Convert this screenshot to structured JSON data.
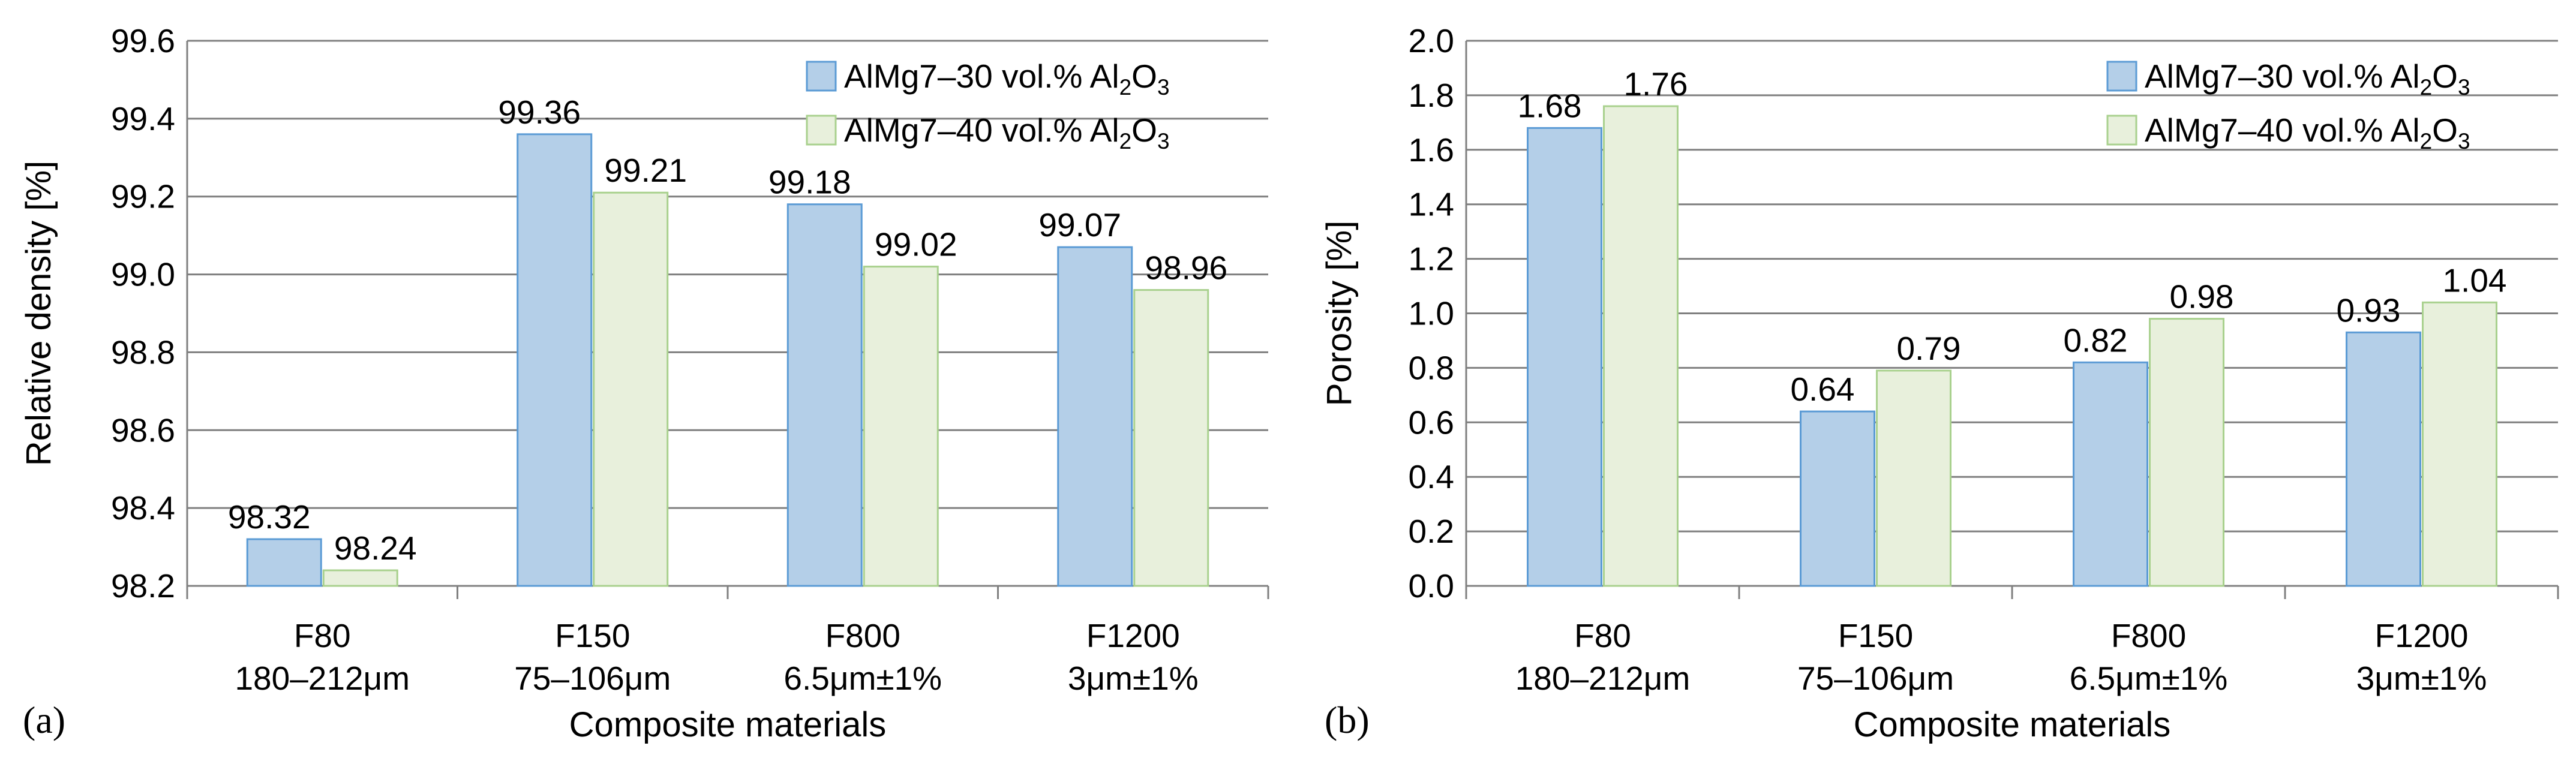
{
  "colors": {
    "series1_fill": "#b4cfe8",
    "series1_stroke": "#5b9bd5",
    "series2_fill": "#e8f0dc",
    "series2_stroke": "#a9d18e",
    "grid": "#7f7f7f",
    "axis": "#808080"
  },
  "chart_data": [
    {
      "type": "bar",
      "panel_label": "(a)",
      "title": "",
      "xlabel": "Composite materials",
      "ylabel": "Relative density [%]",
      "ylim": [
        98.2,
        99.6
      ],
      "ytick_step": 0.2,
      "yticks": [
        "98.2",
        "98.4",
        "98.6",
        "98.8",
        "99.0",
        "99.2",
        "99.4",
        "99.6"
      ],
      "grid": true,
      "legend_position": "top-right",
      "categories": [
        {
          "line1": "F80",
          "line2": "180–212μm"
        },
        {
          "line1": "F150",
          "line2": "75–106μm"
        },
        {
          "line1": "F800",
          "line2": "6.5μm±1%"
        },
        {
          "line1": "F1200",
          "line2": "3μm±1%"
        }
      ],
      "series": [
        {
          "name": "AlMg7–30 vol.% Al₂O₃",
          "values": [
            98.32,
            99.36,
            99.18,
            99.07
          ],
          "labels": [
            "98.32",
            "99.36",
            "99.18",
            "99.07"
          ]
        },
        {
          "name": "AlMg7–40 vol.% Al₂O₃",
          "values": [
            98.24,
            99.21,
            99.02,
            98.96
          ],
          "labels": [
            "98.24",
            "99.21",
            "99.02",
            "98.96"
          ]
        }
      ]
    },
    {
      "type": "bar",
      "panel_label": "(b)",
      "title": "",
      "xlabel": "Composite materials",
      "ylabel": "Porosity [%]",
      "ylim": [
        0.0,
        2.0
      ],
      "ytick_step": 0.2,
      "yticks": [
        "0.0",
        "0.2",
        "0.4",
        "0.6",
        "0.8",
        "1.0",
        "1.2",
        "1.4",
        "1.6",
        "1.8",
        "2.0"
      ],
      "grid": true,
      "legend_position": "top-right",
      "categories": [
        {
          "line1": "F80",
          "line2": "180–212μm"
        },
        {
          "line1": "F150",
          "line2": "75–106μm"
        },
        {
          "line1": "F800",
          "line2": "6.5μm±1%"
        },
        {
          "line1": "F1200",
          "line2": "3μm±1%"
        }
      ],
      "series": [
        {
          "name": "AlMg7–30 vol.% Al₂O₃",
          "values": [
            1.68,
            0.64,
            0.82,
            0.93
          ],
          "labels": [
            "1.68",
            "0.64",
            "0.82",
            "0.93"
          ]
        },
        {
          "name": "AlMg7–40 vol.% Al₂O₃",
          "values": [
            1.76,
            0.79,
            0.98,
            1.04
          ],
          "labels": [
            "1.76",
            "0.79",
            "0.98",
            "1.04"
          ]
        }
      ]
    }
  ]
}
